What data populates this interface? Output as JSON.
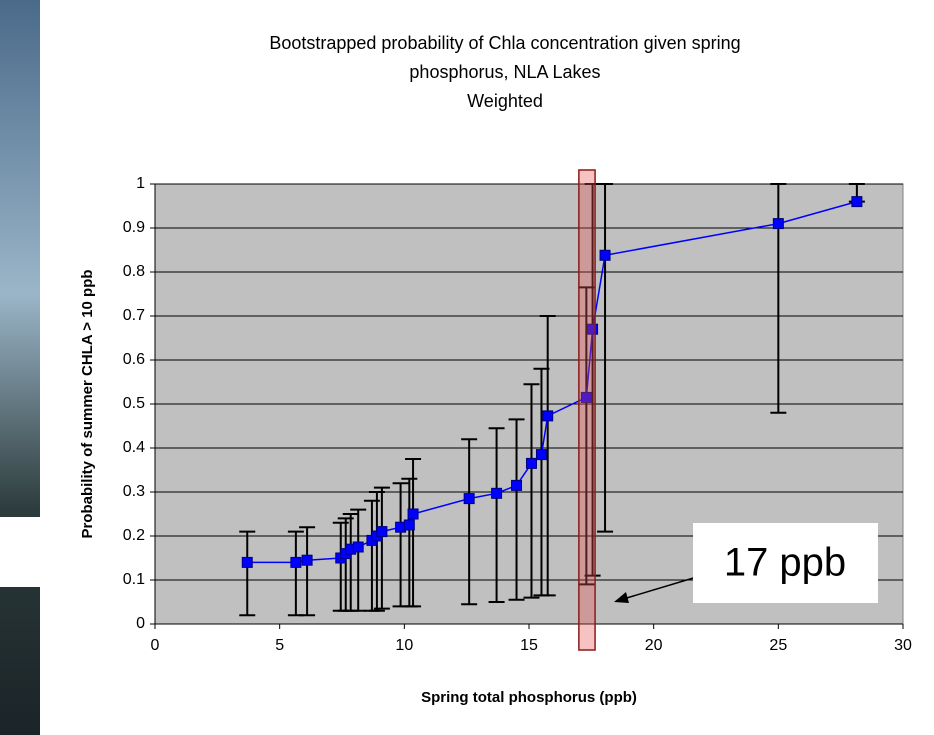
{
  "chart_data": {
    "type": "line",
    "title": [
      "Bootstrapped probability of Chla concentration given spring",
      "phosphorus, NLA Lakes"
    ],
    "subtitle": "Weighted",
    "x_label": "Spring total phosphorus (ppb)",
    "y_label": "Probability of summer CHLA > 10 ppb",
    "xlim": [
      0,
      30
    ],
    "xticks": [
      0,
      5,
      10,
      15,
      20,
      25,
      30
    ],
    "ylim": [
      0,
      1
    ],
    "yticks": [
      0,
      0.1,
      0.2,
      0.3,
      0.4,
      0.5,
      0.6,
      0.7,
      0.8,
      0.9,
      1
    ],
    "grid": true,
    "x": [
      3.7,
      5.65,
      6.1,
      7.45,
      7.65,
      7.85,
      8.15,
      8.7,
      8.9,
      9.1,
      9.85,
      10.2,
      10.35,
      12.6,
      13.7,
      14.5,
      15.1,
      15.5,
      15.75,
      17.3,
      17.55,
      18.05,
      25,
      28.15
    ],
    "series": [
      {
        "color": "#0000ff",
        "values": [
          0.14,
          0.14,
          0.145,
          0.15,
          0.16,
          0.17,
          0.175,
          0.19,
          0.2,
          0.21,
          0.22,
          0.225,
          0.25,
          0.285,
          0.297,
          0.315,
          0.365,
          0.385,
          0.473,
          0.515,
          0.67,
          0.838,
          0.91,
          0.96
        ],
        "lower": [
          0.02,
          0.02,
          0.02,
          0.03,
          0.03,
          0.03,
          0.03,
          0.03,
          0.03,
          0.035,
          0.04,
          0.04,
          0.04,
          0.045,
          0.05,
          0.055,
          0.06,
          0.065,
          0.065,
          0.09,
          0.11,
          0.21,
          0.48,
          0.96
        ],
        "upper": [
          0.21,
          0.21,
          0.22,
          0.23,
          0.24,
          0.25,
          0.26,
          0.28,
          0.3,
          0.31,
          0.32,
          0.33,
          0.375,
          0.42,
          0.445,
          0.465,
          0.545,
          0.58,
          0.7,
          0.765,
          1,
          1,
          1,
          1
        ]
      }
    ],
    "highlight_x": [
      17,
      17.65
    ],
    "annotation": "17 ppb"
  }
}
